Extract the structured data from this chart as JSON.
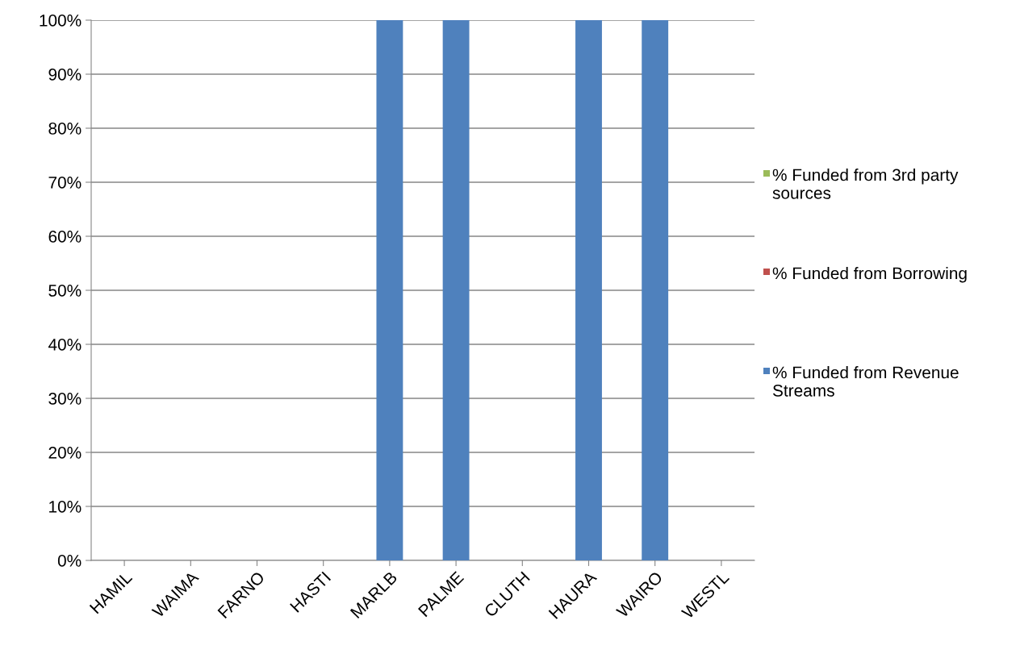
{
  "chart_data": {
    "type": "bar",
    "stacked": true,
    "categories": [
      "HAMIL",
      "WAIMA",
      "FARNO",
      "HASTI",
      "MARLB",
      "PALME",
      "CLUTH",
      "HAURA",
      "WAIRO",
      "WESTL"
    ],
    "series": [
      {
        "name": "% Funded from Revenue Streams",
        "color": "#4f81bd",
        "values": [
          0,
          0,
          0,
          0,
          100,
          100,
          0,
          100,
          100,
          0
        ]
      },
      {
        "name": "% Funded from Borrowing",
        "color": "#c0504d",
        "values": [
          0,
          0,
          0,
          0,
          0,
          0,
          0,
          0,
          0,
          0
        ]
      },
      {
        "name": "% Funded from 3rd party sources",
        "color": "#9bbb59",
        "values": [
          0,
          0,
          0,
          0,
          0,
          0,
          0,
          0,
          0,
          0
        ]
      }
    ],
    "ylim": [
      0,
      100
    ],
    "yticks": [
      {
        "value": 0,
        "label": "0%"
      },
      {
        "value": 10,
        "label": "10%"
      },
      {
        "value": 20,
        "label": "20%"
      },
      {
        "value": 30,
        "label": "30%"
      },
      {
        "value": 40,
        "label": "40%"
      },
      {
        "value": 50,
        "label": "50%"
      },
      {
        "value": 60,
        "label": "60%"
      },
      {
        "value": 70,
        "label": "70%"
      },
      {
        "value": 80,
        "label": "80%"
      },
      {
        "value": 90,
        "label": "90%"
      },
      {
        "value": 100,
        "label": "100%"
      }
    ],
    "grid": "y",
    "legend": "right"
  }
}
